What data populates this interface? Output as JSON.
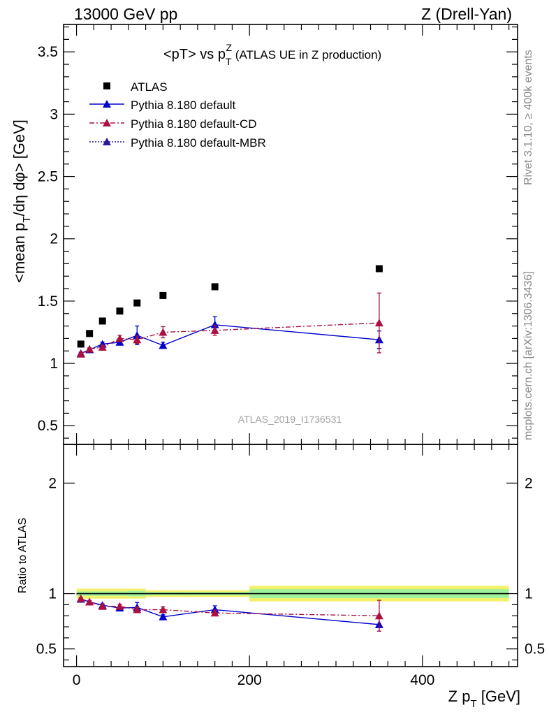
{
  "header": {
    "left": "13000 GeV pp",
    "right": "Z (Drell-Yan)"
  },
  "side_texts": {
    "rivet": "Rivet 3.1.10, ≥ 400k events",
    "mcplots": "mcplots.cern.ch [arXiv:1306.3436]"
  },
  "watermark": "ATLAS_2019_I1736531",
  "colors": {
    "atlas": "#000000",
    "default": "#0000cc",
    "cd": "#aa1040",
    "mbr": "#2a1aa0",
    "band_inner": "#9ef29e",
    "band_outer": "#f2f26a"
  },
  "chart_data": [
    {
      "type": "scatter",
      "panel": "main",
      "title": "<pT> vs pTZ (ATLAS UE in Z production)",
      "title_parts": {
        "main": "<pT> vs p",
        "sub": "T",
        "sup": "Z",
        "rest": " (ATLAS UE in Z production)"
      },
      "ylabel": "<mean pT/dη dφ> [GeV]",
      "ylabel_parts": {
        "pre": "<mean p",
        "sub": "T",
        "post": "/dη dφ> [GeV]"
      },
      "xlim": [
        -15,
        510
      ],
      "ylim": [
        0.35,
        3.72
      ],
      "yticks": [
        0.5,
        1,
        1.5,
        2,
        2.5,
        3,
        3.5
      ],
      "ytick_labels": [
        "0.5",
        "1",
        "1.5",
        "2",
        "2.5",
        "3",
        "3.5"
      ],
      "legend_position": "top-left",
      "series": [
        {
          "name": "ATLAS",
          "style": "square",
          "x": [
            5,
            15,
            30,
            50,
            70,
            100,
            160,
            350
          ],
          "y": [
            1.155,
            1.24,
            1.34,
            1.42,
            1.485,
            1.545,
            1.615,
            1.76
          ]
        },
        {
          "name": "Pythia 8.180 default",
          "style": "solid",
          "x": [
            5,
            15,
            30,
            50,
            70,
            100,
            160,
            350
          ],
          "y": [
            1.08,
            1.11,
            1.155,
            1.17,
            1.225,
            1.145,
            1.31,
            1.19
          ],
          "err": [
            0.01,
            0.01,
            0.015,
            0.02,
            0.075,
            0.025,
            0.065,
            0.07
          ]
        },
        {
          "name": "Pythia 8.180 default-CD",
          "style": "dashdot",
          "x": [
            5,
            15,
            30,
            50,
            70,
            100,
            160,
            350
          ],
          "y": [
            1.075,
            1.115,
            1.13,
            1.2,
            1.19,
            1.25,
            1.265,
            1.325
          ],
          "err": [
            0.01,
            0.01,
            0.015,
            0.025,
            0.03,
            0.045,
            0.04,
            0.24
          ]
        },
        {
          "name": "Pythia 8.180 default-MBR",
          "style": "dotted",
          "x": [],
          "y": []
        }
      ]
    },
    {
      "type": "scatter",
      "panel": "ratio",
      "ylabel": "Ratio to ATLAS",
      "xlabel": "Z pT [GeV]",
      "xlabel_parts": {
        "pre": "Z p",
        "sub": "T",
        "post": " [GeV]"
      },
      "xlim": [
        -15,
        510
      ],
      "ylim": [
        0.34,
        2.35
      ],
      "yticks": [
        0.5,
        1,
        2
      ],
      "ytick_labels": [
        "0.5",
        "1",
        "2"
      ],
      "xticks": [
        0,
        200,
        400
      ],
      "xtick_labels": [
        "0",
        "200",
        "400"
      ],
      "band": [
        {
          "x0": 0,
          "x1": 10,
          "inner": 0.02,
          "outer": 0.045
        },
        {
          "x0": 10,
          "x1": 20,
          "inner": 0.02,
          "outer": 0.045
        },
        {
          "x0": 20,
          "x1": 40,
          "inner": 0.02,
          "outer": 0.045
        },
        {
          "x0": 40,
          "x1": 60,
          "inner": 0.02,
          "outer": 0.045
        },
        {
          "x0": 60,
          "x1": 80,
          "inner": 0.025,
          "outer": 0.045
        },
        {
          "x0": 80,
          "x1": 120,
          "inner": 0.015,
          "outer": 0.03
        },
        {
          "x0": 120,
          "x1": 200,
          "inner": 0.015,
          "outer": 0.03
        },
        {
          "x0": 200,
          "x1": 500,
          "inner": 0.04,
          "outer": 0.07
        }
      ],
      "series": [
        {
          "name": "Pythia 8.180 default",
          "style": "solid",
          "x": [
            5,
            15,
            30,
            50,
            70,
            100,
            160,
            350
          ],
          "y": [
            0.95,
            0.925,
            0.895,
            0.87,
            0.875,
            0.79,
            0.855,
            0.72
          ],
          "err": [
            0.01,
            0.01,
            0.012,
            0.015,
            0.045,
            0.018,
            0.035,
            0.06
          ]
        },
        {
          "name": "Pythia 8.180 default-CD",
          "style": "dashdot",
          "x": [
            5,
            15,
            30,
            50,
            70,
            100,
            160,
            350
          ],
          "y": [
            0.955,
            0.925,
            0.885,
            0.885,
            0.855,
            0.855,
            0.825,
            0.8
          ],
          "err": [
            0.01,
            0.01,
            0.015,
            0.018,
            0.02,
            0.025,
            0.025,
            0.14
          ]
        }
      ]
    }
  ]
}
